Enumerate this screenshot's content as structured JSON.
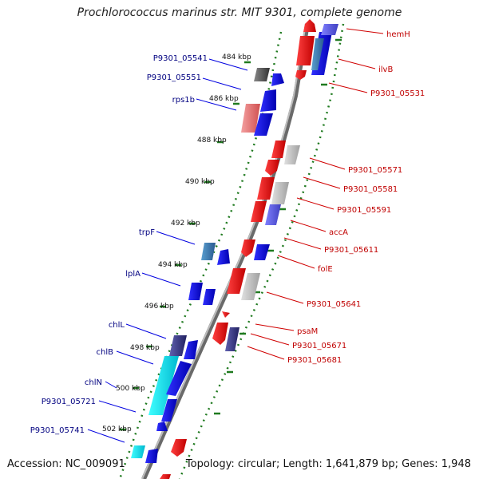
{
  "title": "Prochlorococcus marinus str. MIT 9301, complete genome",
  "footer": {
    "accession": "Accession: NC_009091",
    "summary": "Topology: circular; Length: 1,641,879 bp; Genes: 1,948"
  },
  "colors": {
    "forward_strand": "#e00000",
    "reverse_strand": "#0000e0",
    "forward_label": "#c00000",
    "reverse_label": "#000080",
    "tick_mark": "#1f7a1f",
    "backbone": "#888888"
  },
  "scale_ticks": [
    "484 kbp",
    "486 kbp",
    "488 kbp",
    "490 kbp",
    "492 kbp",
    "494 kbp",
    "496 kbp",
    "498 kbp",
    "500 kbp",
    "502 kbp"
  ],
  "forward_genes": [
    {
      "label": "hemH"
    },
    {
      "label": "ilvB"
    },
    {
      "label": "P9301_05531"
    },
    {
      "label": "P9301_05571"
    },
    {
      "label": "P9301_05581"
    },
    {
      "label": "P9301_05591"
    },
    {
      "label": "accA"
    },
    {
      "label": "P9301_05611"
    },
    {
      "label": "folE"
    },
    {
      "label": "P9301_05641"
    },
    {
      "label": "psaM"
    },
    {
      "label": "P9301_05671"
    },
    {
      "label": "P9301_05681"
    }
  ],
  "reverse_genes": [
    {
      "label": "P9301_05541"
    },
    {
      "label": "P9301_05551"
    },
    {
      "label": "rps1b"
    },
    {
      "label": "trpF"
    },
    {
      "label": "lplA"
    },
    {
      "label": "chlL"
    },
    {
      "label": "chlB"
    },
    {
      "label": "chlN"
    },
    {
      "label": "P9301_05721"
    },
    {
      "label": "P9301_05741"
    }
  ]
}
